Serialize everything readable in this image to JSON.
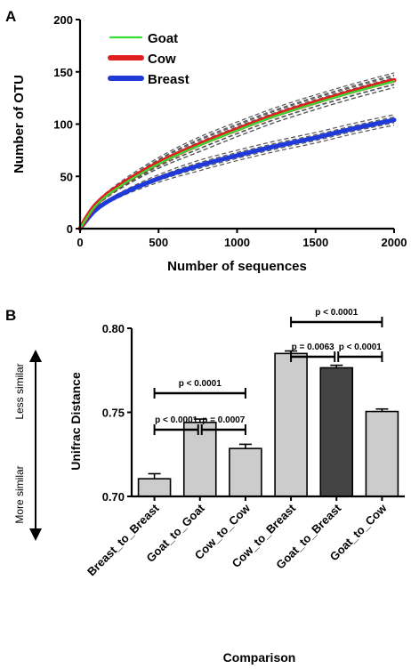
{
  "chart_data": [
    {
      "panel": "A",
      "type": "line",
      "xlabel": "Number of sequences",
      "ylabel": "Number of OTU",
      "xlim": [
        0,
        2000
      ],
      "ylim": [
        0,
        200
      ],
      "xticks": [
        "0",
        "500",
        "1000",
        "1500",
        "2000"
      ],
      "yticks": [
        "0",
        "50",
        "100",
        "150",
        "200"
      ],
      "legend_position": "top-left",
      "series": [
        {
          "name": "Goat",
          "color": "#33dd33",
          "x": [
            0,
            100,
            250,
            500,
            750,
            1000,
            1250,
            1500,
            1750,
            2000
          ],
          "y": [
            0,
            22,
            40,
            62,
            79,
            94,
            108,
            120,
            131,
            141
          ],
          "band": 6
        },
        {
          "name": "Cow",
          "color": "#e02020",
          "x": [
            0,
            100,
            250,
            500,
            750,
            1000,
            1250,
            1500,
            1750,
            2000
          ],
          "y": [
            0,
            23,
            41,
            63,
            80,
            95,
            109,
            121,
            132,
            142
          ],
          "band": 7
        },
        {
          "name": "Breast",
          "color": "#1f3ad8",
          "x": [
            0,
            100,
            250,
            500,
            750,
            1000,
            1250,
            1500,
            1750,
            2000
          ],
          "y": [
            0,
            18,
            32,
            48,
            60,
            70,
            79,
            87,
            96,
            104
          ],
          "band": 5
        }
      ]
    },
    {
      "panel": "B",
      "type": "bar",
      "xlabel": "Comparison",
      "ylabel": "Unifrac Distance",
      "ylim": [
        0.7,
        0.8
      ],
      "yticks": [
        "0.70",
        "0.75",
        "0.80"
      ],
      "categories": [
        "Breast_to_Breast",
        "Goat_to_Goat",
        "Cow_to_Cow",
        "Cow_to_Breast",
        "Goat_to_Breast",
        "Goat_to_Cow"
      ],
      "values": [
        0.7105,
        0.744,
        0.7285,
        0.785,
        0.7765,
        0.7505
      ],
      "errors": [
        0.003,
        0.002,
        0.0025,
        0.0015,
        0.0015,
        0.0015
      ],
      "bar_colors": [
        "#cccccc",
        "#cccccc",
        "#cccccc",
        "#cccccc",
        "#444444",
        "#cccccc"
      ],
      "annotations": {
        "upper_label": "Less similar",
        "lower_label": "More similar",
        "brackets": [
          {
            "from": 0,
            "to": 2,
            "level": 2,
            "text": "p < 0.0001"
          },
          {
            "from": 0,
            "to": 1,
            "level": 1,
            "text": "p < 0.0001"
          },
          {
            "from": 1,
            "to": 2,
            "level": 1,
            "text": "p = 0.0007"
          },
          {
            "from": 3,
            "to": 5,
            "level": 2,
            "text": "p < 0.0001"
          },
          {
            "from": 3,
            "to": 4,
            "level": 1,
            "text": "p = 0.0063"
          },
          {
            "from": 4,
            "to": 5,
            "level": 1,
            "text": "p < 0.0001"
          }
        ]
      }
    }
  ]
}
